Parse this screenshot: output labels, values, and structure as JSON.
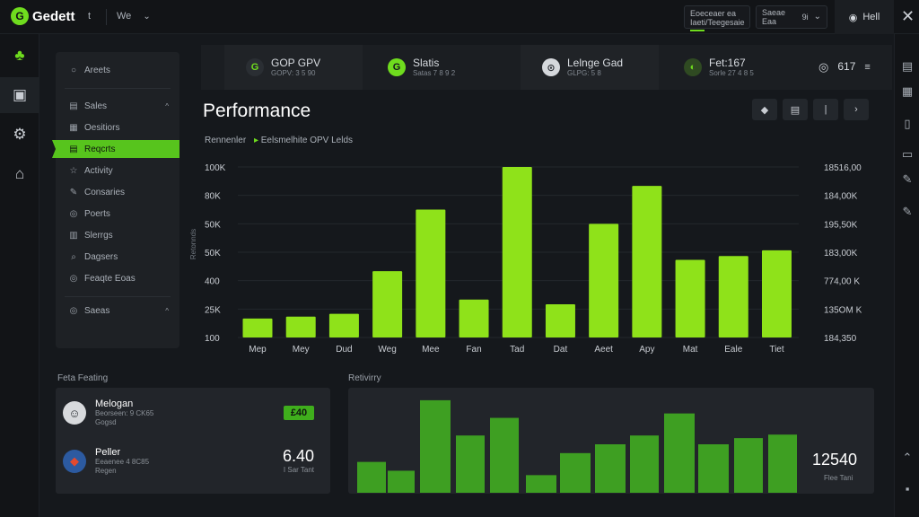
{
  "app": {
    "logo_mark": "G",
    "name": "Gedett",
    "menu_letter": "t",
    "workspace": "We"
  },
  "topbar": {
    "box1": {
      "line1": "Eoeceaer ea",
      "line2": "Iaeti/Teegesaie"
    },
    "box2": {
      "label": "Saeae Eaa",
      "value": "9i"
    },
    "user": {
      "name": "Hell"
    }
  },
  "rail": [
    {
      "name": "tree-icon",
      "glyph": "♣",
      "color": "#6fdc1e"
    },
    {
      "name": "cube-icon",
      "glyph": "▣",
      "color": "#c9cdd3"
    },
    {
      "name": "gear-icon",
      "glyph": "⚙",
      "color": "#c9cdd3"
    },
    {
      "name": "home-icon",
      "glyph": "⌂",
      "color": "#c9cdd3"
    }
  ],
  "right_rail": [
    "clipboard-icon",
    "layers-icon",
    "document-icon",
    "copy-icon",
    "pen-icon",
    "pencil-icon",
    "chevron-up-icon",
    "grid-icon"
  ],
  "subnav": {
    "header": {
      "label": "Areets",
      "icon": "○"
    },
    "items": [
      {
        "label": "Sales",
        "icon": "▤",
        "caret": "^"
      },
      {
        "label": "Oesitiors",
        "icon": "▦"
      },
      {
        "label": "Reqcrts",
        "icon": "▤",
        "active": true
      },
      {
        "label": "Activity",
        "icon": "☆"
      },
      {
        "label": "Consaries",
        "icon": "✎"
      },
      {
        "label": "Poerts",
        "icon": "◎"
      },
      {
        "label": "Slerrgs",
        "icon": "▥"
      },
      {
        "label": "Dagsers",
        "icon": "⌕"
      },
      {
        "label": "Feaqte Eoas",
        "icon": "◎"
      }
    ],
    "footer": {
      "label": "Saeas",
      "icon": "◎",
      "caret": "^"
    }
  },
  "kpis": [
    {
      "title": "GOP GPV",
      "sub": "GOPV: 3 5 90",
      "icon": "G",
      "icon_bg": "#2a2e33",
      "icon_fg": "#6fdc1e"
    },
    {
      "title": "Slatis",
      "sub": "Satas 7 8 9 2",
      "icon": "G",
      "icon_bg": "#6fdc1e",
      "icon_fg": "#14181c"
    },
    {
      "title": "Lelnge Gad",
      "sub": "GLPG: 5 8",
      "icon": "⊙",
      "icon_bg": "#d5d8dc",
      "icon_fg": "#2a2e33"
    },
    {
      "title": "Fet:167",
      "sub": "Sorle 27 4 8 5",
      "icon": "◐",
      "icon_bg": "#2f4a22",
      "icon_fg": "#6fdc1e"
    }
  ],
  "kpi_extra": {
    "value": "617",
    "icon": "◎"
  },
  "performance": {
    "title": "Performance",
    "sub_left": "Rennenler",
    "sub_right": "Eelsmelhite OPV Lelds",
    "controls": [
      "◆",
      "▤",
      "|",
      "›"
    ]
  },
  "chart_data": {
    "type": "bar",
    "categories": [
      "Mep",
      "Mey",
      "Dud",
      "Weg",
      "Mee",
      "Fan",
      "Tad",
      "Dat",
      "Aeet",
      "Apy",
      "Mat",
      "Eale",
      "Tiet"
    ],
    "values": [
      20,
      22,
      25,
      70,
      135,
      40,
      180,
      35,
      120,
      160,
      82,
      86,
      92
    ],
    "ylim": [
      0,
      180
    ],
    "yticks_left": [
      "100",
      "25K",
      "400",
      "50K",
      "50K",
      "80K",
      "100K"
    ],
    "yticks_right": [
      "184,350",
      "135OM K",
      "774,00 K",
      "183,00K",
      "195,50K",
      "184,00K",
      "18516,00"
    ],
    "ylabel": "Retonnds",
    "color": "#8fe21a"
  },
  "bottom": {
    "left_label": "Feta Feating",
    "right_label": "Retivirry",
    "people": [
      {
        "name": "Melogan",
        "sub1": "Beorseen: 9 CK65",
        "sub2": "Gogsd",
        "badge": "£40"
      },
      {
        "name": "Peller",
        "sub1": "Eeaenee 4 8C85",
        "sub2": "Regen",
        "value": "6.40",
        "value_sub": "I Sar Tant"
      }
    ],
    "activity": {
      "values": [
        35,
        25,
        105,
        65,
        85,
        20,
        45,
        55,
        65,
        90,
        55,
        62,
        66
      ],
      "value": "12540",
      "value_sub": "Flee Tani"
    }
  }
}
